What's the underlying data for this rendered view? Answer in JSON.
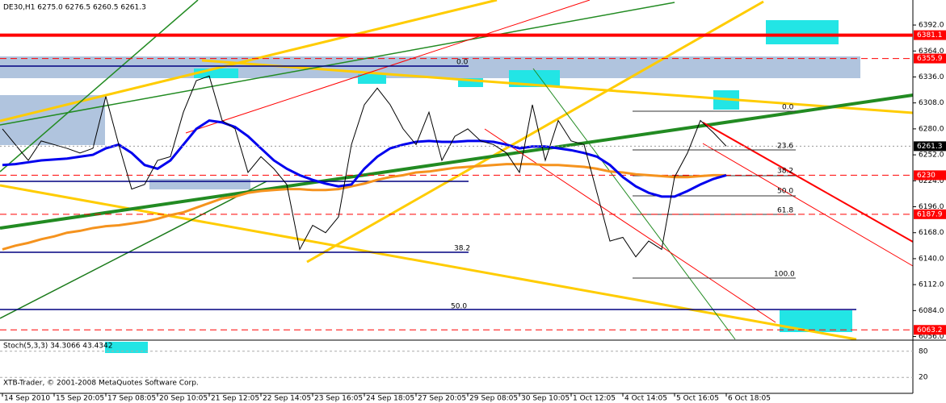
{
  "chart_data": [
    {
      "type": "line",
      "title": "DE30,H1  6275.0 6276.5 6260.5 6261.3",
      "footer": "XTB-Trader, © 2001-2008 MetaQuotes Software Corp.",
      "categories": [
        "14 Sep 2010",
        null,
        null,
        null,
        "15 Sep 20:05",
        null,
        null,
        null,
        "17 Sep 08:05",
        null,
        null,
        null,
        "20 Sep 10:05",
        null,
        null,
        null,
        "21 Sep 12:05",
        null,
        null,
        null,
        "22 Sep 14:05",
        null,
        null,
        null,
        "23 Sep 16:05",
        null,
        null,
        null,
        "24 Sep 18:05",
        null,
        null,
        null,
        "27 Sep 20:05",
        null,
        null,
        null,
        "29 Sep 08:05",
        null,
        null,
        null,
        "30 Sep 10:05",
        null,
        null,
        null,
        "1 Oct 12:05",
        null,
        null,
        null,
        "4 Oct 14:05",
        null,
        null,
        null,
        "5 Oct 16:05",
        null,
        null,
        null,
        "6 Oct 18:05"
      ],
      "series": [
        {
          "color": "#000000",
          "values": [
            6280,
            6263,
            6246,
            6267,
            6263,
            6259,
            6254,
            6259,
            6315,
            6263,
            6215,
            6220,
            6246,
            6250,
            6298,
            6332,
            6337,
            6289,
            6280,
            6233,
            6250,
            6237,
            6220,
            6150,
            6176,
            6168,
            6185,
            6263,
            6306,
            6324,
            6306,
            6280,
            6263,
            6298,
            6246,
            6272,
            6280,
            6267,
            6263,
            6254,
            6233,
            6306,
            6246,
            6289,
            6267,
            6263,
            6211,
            6159,
            6163,
            6142,
            6159,
            6150,
            6228,
            6254,
            6289,
            6276,
            6261.3
          ]
        },
        {
          "color": "#0000ee",
          "values": [
            6241,
            6242,
            6244,
            6246,
            6247,
            6248,
            6250,
            6252,
            6259,
            6263,
            6254,
            6241,
            6237,
            6246,
            6263,
            6280,
            6289,
            6287,
            6282,
            6272,
            6259,
            6246,
            6237,
            6230,
            6225,
            6221,
            6218,
            6220,
            6237,
            6250,
            6259,
            6263,
            6266,
            6267,
            6266,
            6266,
            6267,
            6267,
            6266,
            6263,
            6259,
            6261,
            6261,
            6259,
            6257,
            6254,
            6250,
            6241,
            6228,
            6218,
            6211,
            6207,
            6207,
            6213,
            6220,
            6226,
            6230
          ]
        },
        {
          "color": "#f5931e",
          "values": [
            6150,
            6154,
            6157,
            6161,
            6164,
            6168,
            6170,
            6173,
            6175,
            6176,
            6178,
            6180,
            6183,
            6187,
            6190,
            6195,
            6200,
            6205,
            6207,
            6211,
            6213,
            6214,
            6215,
            6215,
            6214,
            6214,
            6215,
            6218,
            6221,
            6225,
            6228,
            6230,
            6233,
            6234,
            6236,
            6238,
            6239,
            6240,
            6241,
            6242,
            6242,
            6242,
            6241,
            6241,
            6240,
            6239,
            6237,
            6234,
            6233,
            6231,
            6230,
            6229,
            6228,
            6228,
            6229,
            6230,
            6230
          ]
        }
      ],
      "ylim": [
        6053,
        6419
      ],
      "yticks": [
        {
          "value": 6392,
          "label": "6392.0"
        },
        {
          "value": 6364,
          "label": "6364.0"
        },
        {
          "value": 6336,
          "label": "6336.0"
        },
        {
          "value": 6308,
          "label": "6308.0"
        },
        {
          "value": 6280,
          "label": "6280.0"
        },
        {
          "value": 6252,
          "label": "6252.0"
        },
        {
          "value": 6224,
          "label": "6224.0"
        },
        {
          "value": 6196,
          "label": "6196.0"
        },
        {
          "value": 6168,
          "label": "6168.0"
        },
        {
          "value": 6140,
          "label": "6140.0"
        },
        {
          "value": 6112,
          "label": "6112.0"
        },
        {
          "value": 6084,
          "label": "6084.0"
        },
        {
          "value": 6056,
          "label": "6056.0"
        }
      ],
      "levels": [
        {
          "value": 6381.1,
          "color": "#ff0000",
          "style": "thick"
        },
        {
          "value": 6355.9,
          "color": "#ff0000",
          "style": "dashed"
        },
        {
          "value": 6230,
          "color": "#ff0000",
          "style": "dashed"
        },
        {
          "value": 6187.9,
          "color": "#ff0000",
          "style": "dashed"
        },
        {
          "value": 6063.2,
          "color": "#ff0000",
          "style": "dashed"
        }
      ],
      "last_price": 6261.3,
      "fib_labels": [
        "0.0",
        "0.0",
        "23.6",
        "38.2",
        "38.2",
        "50.0",
        "50.0",
        "61.8",
        "100.0"
      ]
    },
    {
      "type": "line",
      "title": "Stoch(5,3,3) 34.3066 43.4342",
      "ylim": [
        0,
        100
      ],
      "yticks": [
        80,
        20
      ]
    }
  ]
}
